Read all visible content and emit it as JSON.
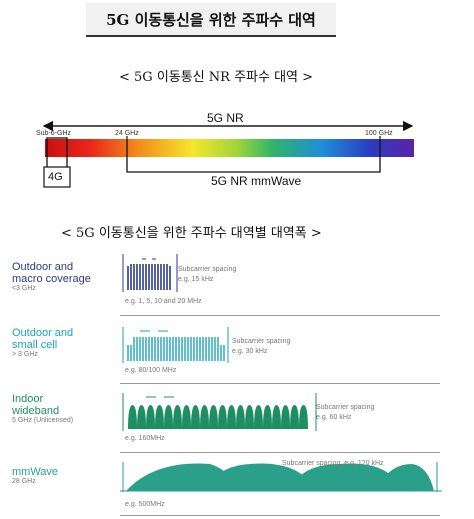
{
  "page_title": "5G 이동통신을 위한 주파수 대역",
  "section1": {
    "heading": "< 5G 이동통신 NR 주파수 대역 >",
    "nr_label": "5G NR",
    "sub6_label": "Sub-6-GHz",
    "label_24": "24 GHz",
    "label_100": "100 GHz",
    "label_4g": "4G",
    "mmwave_label": "5G NR mmWave"
  },
  "section2": {
    "heading": "< 5G 이동통신을 위한 주파수 대역별 대역폭 >",
    "colors": {
      "outdoor": "#2b3a8f",
      "teal": "#1aa5b8",
      "green": "#1d8f63",
      "mmwave": "#2a9f8a"
    },
    "bands": [
      {
        "title_line1": "Outdoor and",
        "title_line2": "macro coverage",
        "sub": "<3 GHz",
        "spacing_line1": "Subcarrier spacing",
        "spacing_line2": "e.g. 15 kHz",
        "bandwidth": "e.g. 1, 5, 10 and 20 MHz"
      },
      {
        "title_line1": "Outdoor and",
        "title_line2": "small cell",
        "sub": "> 3 GHz",
        "spacing_line1": "Subcarrier spacing",
        "spacing_line2": "e.g. 30 kHz",
        "bandwidth": "e.g. 80/100 MHz"
      },
      {
        "title_line1": "Indoor",
        "title_line2": "wideband",
        "sub": "5 GHz (Unlicensed)",
        "spacing_line1": "Subcarrier spacing",
        "spacing_line2": "e.g. 60 kHz",
        "bandwidth": "e.g. 160MHz"
      },
      {
        "title_line1": "mmWave",
        "title_line2": "",
        "sub": "28 GHz",
        "spacing_line1": "Subcarrier spacing, e.g. 120 kHz",
        "spacing_line2": "",
        "bandwidth": "e.g. 500MHz"
      }
    ]
  }
}
